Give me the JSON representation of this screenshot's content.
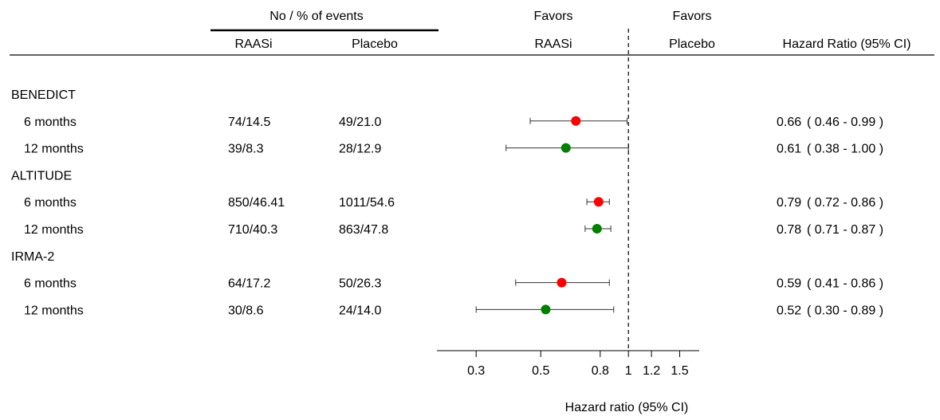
{
  "header": {
    "events_group": "No / % of  events",
    "col_raasi": "RAASi",
    "col_placebo": "Placebo",
    "favors_left": [
      "Favors",
      "RAASi"
    ],
    "favors_right": [
      "Favors",
      "Placebo"
    ],
    "col_hr": "Hazard Ratio (95% CI)"
  },
  "chart_data": {
    "type": "forest",
    "xlabel": "Hazard ratio (95% CI)",
    "x_scale": "log",
    "xlim": [
      0.22,
      1.75
    ],
    "reference_line": 1,
    "ticks": [
      {
        "value": 0.3,
        "label": "0.3"
      },
      {
        "value": 0.5,
        "label": "0.5"
      },
      {
        "value": 0.8,
        "label": "0.8"
      },
      {
        "value": 1,
        "label": "1"
      },
      {
        "value": 1.2,
        "label": "1.2"
      },
      {
        "value": 1.5,
        "label": "1.5"
      }
    ],
    "colors": {
      "6 months": "#ff0000",
      "12 months": "#008000"
    },
    "rows": [
      {
        "kind": "group",
        "label": "BENEDICT"
      },
      {
        "kind": "item",
        "label": "6 months",
        "raasi": "74/14.5",
        "placebo": "49/21.0",
        "hr": 0.66,
        "lo": 0.46,
        "hi": 0.99,
        "hr_text": "0.66",
        "ci_text": "( 0.46  - 0.99 )",
        "color": "#ff0000"
      },
      {
        "kind": "item",
        "label": "12 months",
        "raasi": "39/8.3",
        "placebo": "28/12.9",
        "hr": 0.61,
        "lo": 0.38,
        "hi": 1.0,
        "hr_text": "0.61",
        "ci_text": "( 0.38  - 1.00 )",
        "color": "#008000"
      },
      {
        "kind": "group",
        "label": "ALTITUDE"
      },
      {
        "kind": "item",
        "label": "6 months",
        "raasi": "850/46.41",
        "placebo": "1011/54.6",
        "hr": 0.79,
        "lo": 0.72,
        "hi": 0.86,
        "hr_text": "0.79",
        "ci_text": "( 0.72  - 0.86 )",
        "color": "#ff0000"
      },
      {
        "kind": "item",
        "label": "12 months",
        "raasi": "710/40.3",
        "placebo": "863/47.8",
        "hr": 0.78,
        "lo": 0.71,
        "hi": 0.87,
        "hr_text": "0.78",
        "ci_text": "( 0.71  - 0.87 )",
        "color": "#008000"
      },
      {
        "kind": "group",
        "label": "IRMA-2"
      },
      {
        "kind": "item",
        "label": "6 months",
        "raasi": "64/17.2",
        "placebo": "50/26.3",
        "hr": 0.59,
        "lo": 0.41,
        "hi": 0.86,
        "hr_text": "0.59",
        "ci_text": "( 0.41  - 0.86 )",
        "color": "#ff0000"
      },
      {
        "kind": "item",
        "label": "12 months",
        "raasi": "30/8.6",
        "placebo": "24/14.0",
        "hr": 0.52,
        "lo": 0.3,
        "hi": 0.89,
        "hr_text": "0.52",
        "ci_text": "( 0.30  - 0.89 )",
        "color": "#008000"
      }
    ]
  }
}
